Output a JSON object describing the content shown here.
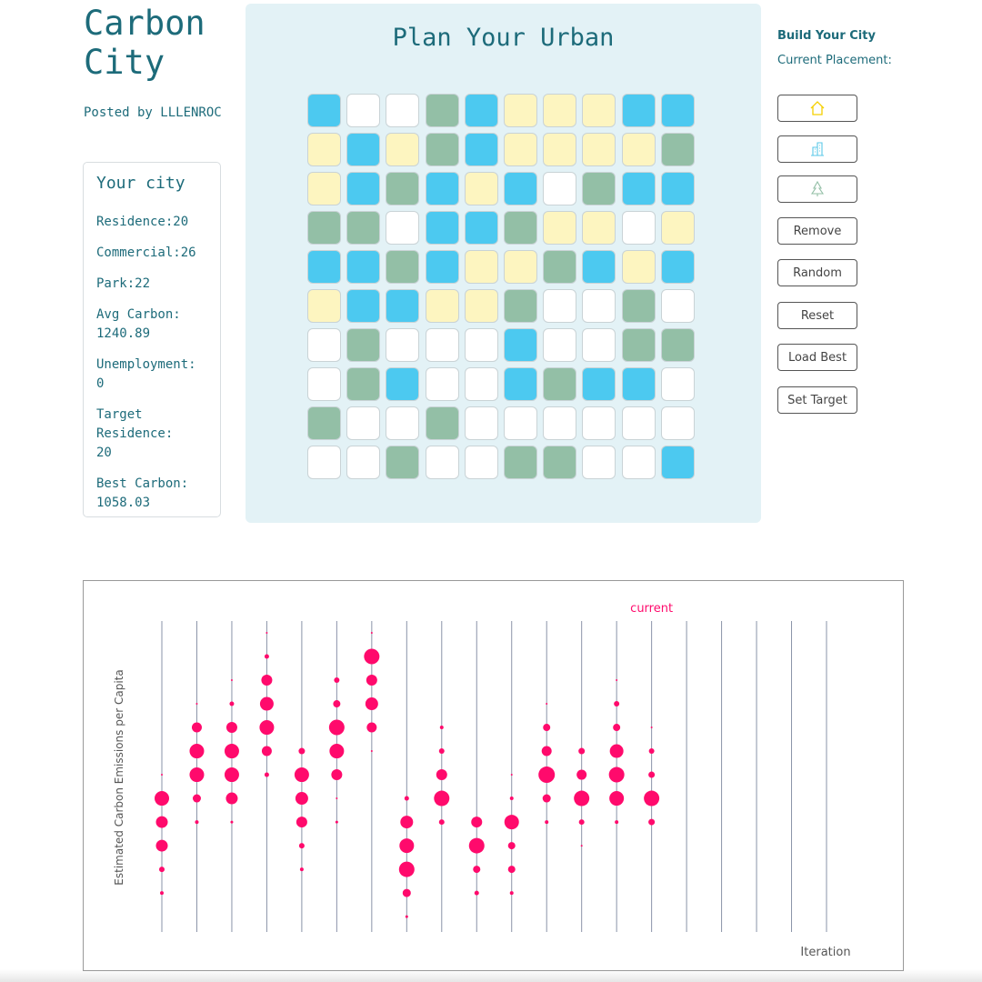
{
  "header": {
    "title": "Carbon City",
    "posted": "Posted by LLLENROC"
  },
  "stats": {
    "title": "Your city",
    "items": [
      [
        "Residence:20"
      ],
      [
        "Commercial:26"
      ],
      [
        "Park:22"
      ],
      [
        "Avg Carbon:",
        "1240.89"
      ],
      [
        "Unemployment:",
        "0"
      ],
      [
        "Target",
        "Residence:",
        "20"
      ],
      [
        "Best Carbon:",
        "1058.03"
      ]
    ]
  },
  "board": {
    "title": "Plan Your Urban",
    "rows": [
      [
        "#4cc9f0",
        "#ffffff",
        "#ffffff",
        "#93bfa6",
        "#4cc9f0",
        "#fdf5c0",
        "#fdf5c0",
        "#fdf5c0",
        "#4cc9f0",
        "#4cc9f0"
      ],
      [
        "#fdf5c0",
        "#4cc9f0",
        "#fdf5c0",
        "#93bfa6",
        "#4cc9f0",
        "#fdf5c0",
        "#fdf5c0",
        "#fdf5c0",
        "#fdf5c0",
        "#93bfa6"
      ],
      [
        "#fdf5c0",
        "#4cc9f0",
        "#93bfa6",
        "#4cc9f0",
        "#fdf5c0",
        "#4cc9f0",
        "#ffffff",
        "#93bfa6",
        "#4cc9f0",
        "#4cc9f0"
      ],
      [
        "#93bfa6",
        "#93bfa6",
        "#ffffff",
        "#4cc9f0",
        "#4cc9f0",
        "#93bfa6",
        "#fdf5c0",
        "#fdf5c0",
        "#ffffff",
        "#fdf5c0"
      ],
      [
        "#4cc9f0",
        "#4cc9f0",
        "#93bfa6",
        "#4cc9f0",
        "#fdf5c0",
        "#fdf5c0",
        "#93bfa6",
        "#4cc9f0",
        "#fdf5c0",
        "#4cc9f0"
      ],
      [
        "#fdf5c0",
        "#4cc9f0",
        "#4cc9f0",
        "#fdf5c0",
        "#fdf5c0",
        "#93bfa6",
        "#ffffff",
        "#ffffff",
        "#93bfa6",
        "#ffffff"
      ],
      [
        "#ffffff",
        "#93bfa6",
        "#ffffff",
        "#ffffff",
        "#ffffff",
        "#4cc9f0",
        "#ffffff",
        "#ffffff",
        "#93bfa6",
        "#93bfa6"
      ],
      [
        "#ffffff",
        "#93bfa6",
        "#4cc9f0",
        "#ffffff",
        "#ffffff",
        "#4cc9f0",
        "#93bfa6",
        "#4cc9f0",
        "#4cc9f0",
        "#ffffff"
      ],
      [
        "#93bfa6",
        "#ffffff",
        "#ffffff",
        "#93bfa6",
        "#ffffff",
        "#ffffff",
        "#ffffff",
        "#ffffff",
        "#ffffff",
        "#ffffff"
      ],
      [
        "#ffffff",
        "#ffffff",
        "#93bfa6",
        "#ffffff",
        "#ffffff",
        "#93bfa6",
        "#93bfa6",
        "#ffffff",
        "#ffffff",
        "#4cc9f0"
      ]
    ]
  },
  "controls": {
    "title": "Build Your City",
    "placement": "Current Placement:",
    "buttons": [
      "Remove",
      "Random",
      "Reset",
      "Load Best",
      "Set Target"
    ]
  },
  "chart_data": {
    "type": "dot",
    "ylabel": "Estimated Carbon Emissions per Capita",
    "xlabel": "Iteration",
    "annotation": "current",
    "color": "#ff0a6c",
    "ylim": [
      0.35,
      13.5
    ],
    "columns": [
      {
        "levels": [
          7,
          6,
          5,
          4,
          3,
          2
        ],
        "sizes": [
          1,
          8,
          6.5,
          6.5,
          3,
          2
        ]
      },
      {
        "levels": [
          10,
          9,
          8,
          7,
          6,
          5
        ],
        "sizes": [
          1,
          5.5,
          8,
          8,
          4.5,
          2
        ]
      },
      {
        "levels": [
          11,
          10,
          9,
          8,
          7,
          6,
          5
        ],
        "sizes": [
          1,
          2.5,
          6,
          8,
          8,
          6.5,
          1.5
        ]
      },
      {
        "levels": [
          13,
          12,
          11,
          10,
          9,
          8,
          7
        ],
        "sizes": [
          1,
          2.5,
          6,
          7.5,
          8,
          5.5,
          2.5
        ]
      },
      {
        "levels": [
          8,
          7,
          6,
          5,
          4,
          3
        ],
        "sizes": [
          3.5,
          8,
          7,
          6,
          3,
          2
        ]
      },
      {
        "levels": [
          11,
          10,
          9,
          8,
          7,
          6,
          5
        ],
        "sizes": [
          3,
          4,
          8.5,
          8,
          6,
          1,
          1.5
        ]
      },
      {
        "levels": [
          13,
          12,
          11,
          10,
          9,
          8
        ],
        "sizes": [
          1,
          8.5,
          6,
          7,
          5.5,
          1
        ]
      },
      {
        "levels": [
          6,
          5,
          4,
          3,
          2,
          1
        ],
        "sizes": [
          2.5,
          7,
          8,
          8.5,
          4.5,
          1.5
        ]
      },
      {
        "levels": [
          9,
          8,
          7,
          6,
          5
        ],
        "sizes": [
          2,
          3,
          6,
          8.5,
          3
        ]
      },
      {
        "levels": [
          5,
          4,
          3,
          2
        ],
        "sizes": [
          6,
          8.5,
          4,
          2.5
        ]
      },
      {
        "levels": [
          7,
          6,
          5,
          4,
          3,
          2
        ],
        "sizes": [
          1,
          2,
          8,
          4,
          4,
          2
        ]
      },
      {
        "levels": [
          10,
          9,
          8,
          7,
          6,
          5
        ],
        "sizes": [
          1,
          4,
          5.5,
          9,
          4.5,
          2
        ]
      },
      {
        "levels": [
          8,
          7,
          6,
          5,
          4
        ],
        "sizes": [
          3.5,
          5.5,
          8.5,
          3,
          1
        ]
      },
      {
        "levels": [
          11,
          10,
          9,
          8,
          7,
          6,
          5
        ],
        "sizes": [
          1,
          3,
          4,
          7.5,
          8.5,
          8,
          2
        ]
      },
      {
        "levels": [
          9,
          8,
          7,
          6,
          5
        ],
        "sizes": [
          1,
          3,
          3.5,
          8.5,
          3.5
        ]
      },
      {
        "levels": [],
        "sizes": []
      },
      {
        "levels": [],
        "sizes": []
      },
      {
        "levels": [],
        "sizes": []
      },
      {
        "levels": [],
        "sizes": []
      },
      {
        "levels": [],
        "sizes": []
      }
    ]
  }
}
